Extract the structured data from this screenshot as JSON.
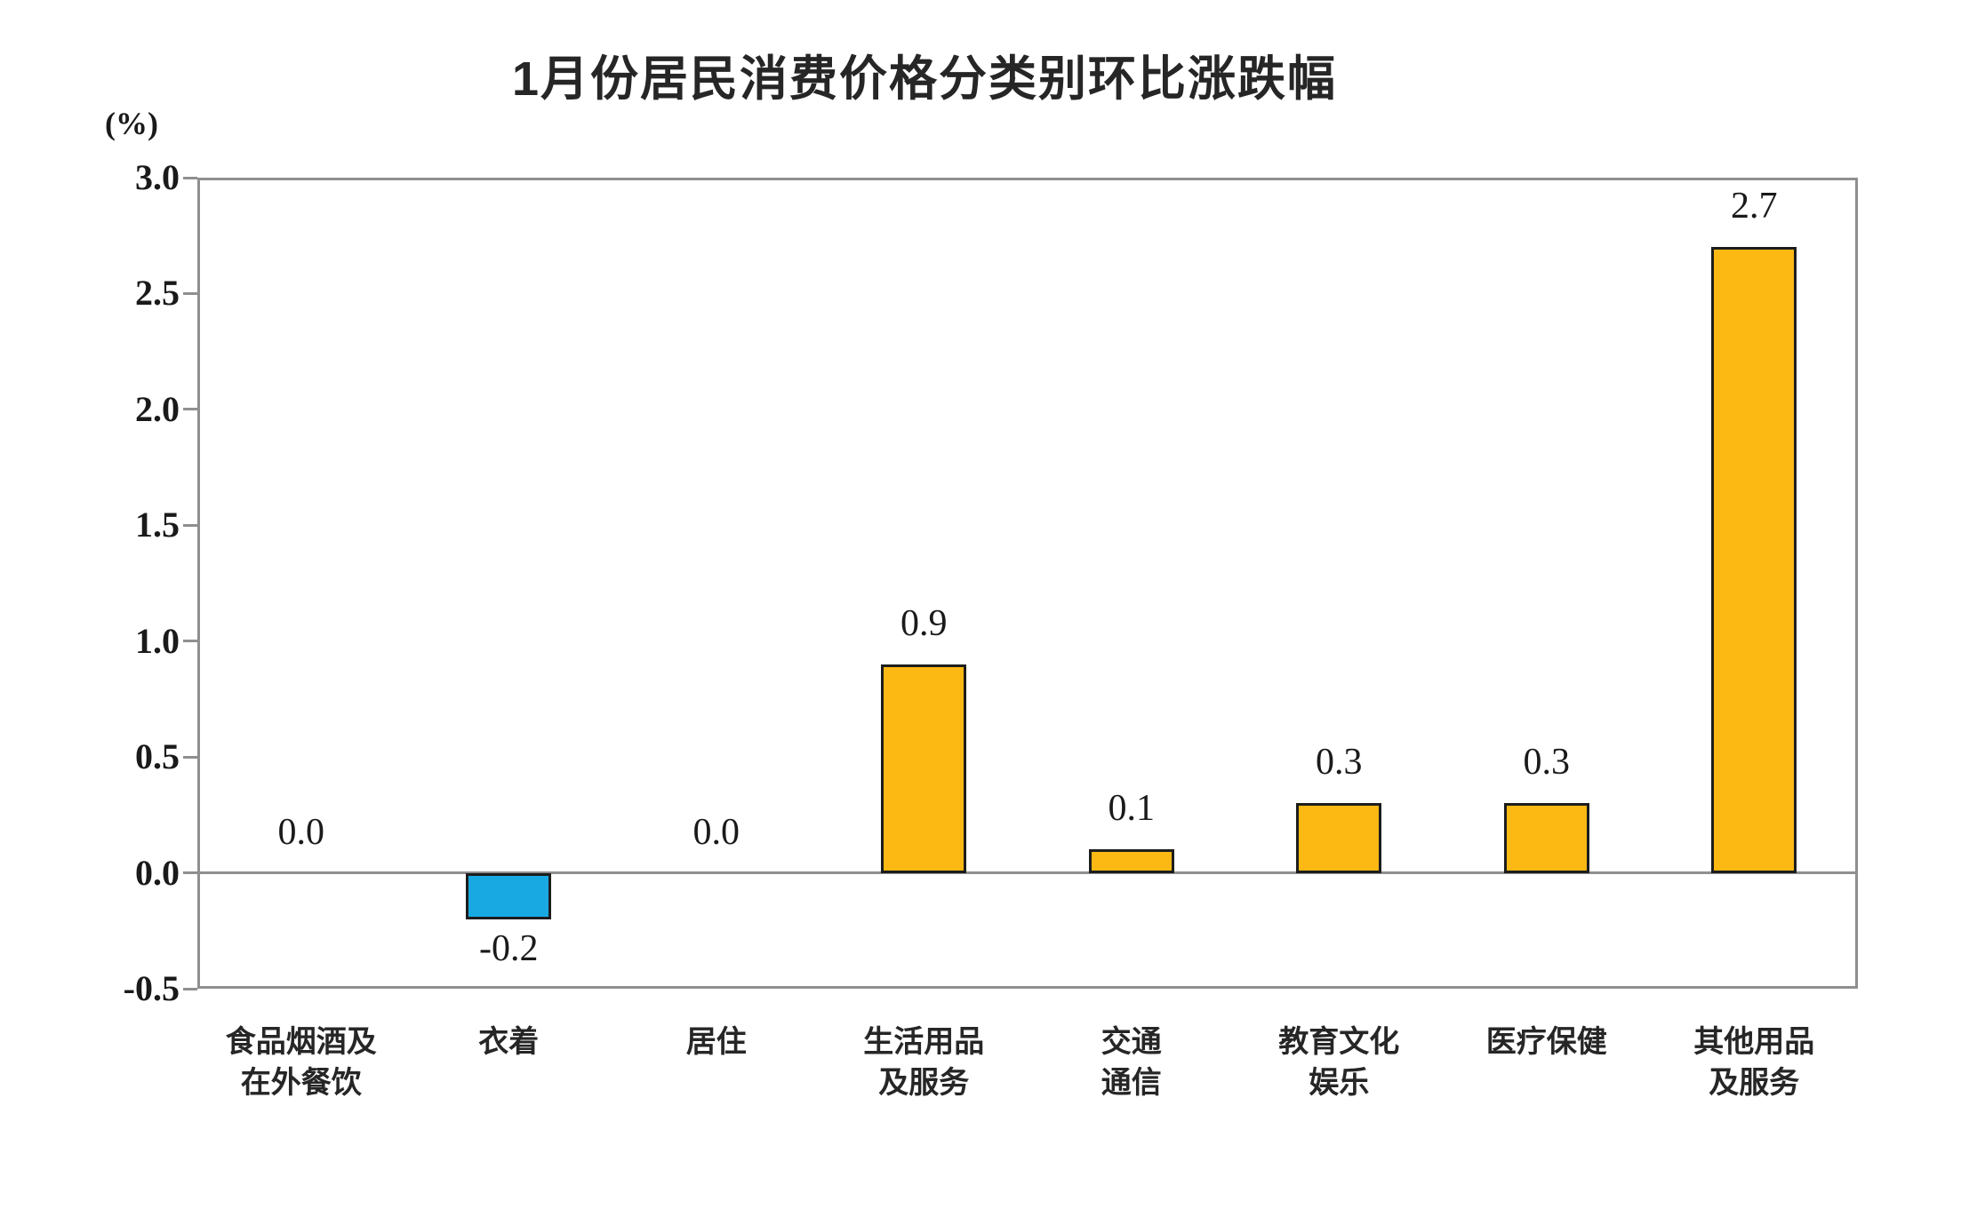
{
  "chart_data": {
    "type": "bar",
    "title": "1月份居民消费价格分类别环比涨跌幅",
    "unit_label": "(%)",
    "categories": [
      "食品烟酒及\n在外餐饮",
      "衣着",
      "居住",
      "生活用品\n及服务",
      "交通\n通信",
      "教育文化\n娱乐",
      "医疗保健",
      "其他用品\n及服务"
    ],
    "values": [
      0.0,
      -0.2,
      0.0,
      0.9,
      0.1,
      0.3,
      0.3,
      2.7
    ],
    "value_labels": [
      "0.0",
      "-0.2",
      "0.0",
      "0.9",
      "0.1",
      "0.3",
      "0.3",
      "2.7"
    ],
    "y_tick_values": [
      3.0,
      2.5,
      2.0,
      1.5,
      1.0,
      0.5,
      0.0,
      -0.5
    ],
    "y_tick_labels": [
      "3.0",
      "2.5",
      "2.0",
      "1.5",
      "1.0",
      "0.5",
      "0.0",
      "-0.5"
    ],
    "ylim": [
      -0.5,
      3.0
    ],
    "grid": false,
    "legend": false,
    "xlabel": "",
    "ylabel": "(%)",
    "colors": {
      "positive_bar": "#FCB813",
      "negative_bar": "#18A9E2",
      "bar_border": "#1d1d1d",
      "axis": "#8f8f8f",
      "text": "#1a1a1a",
      "title_text": "#262626"
    }
  }
}
